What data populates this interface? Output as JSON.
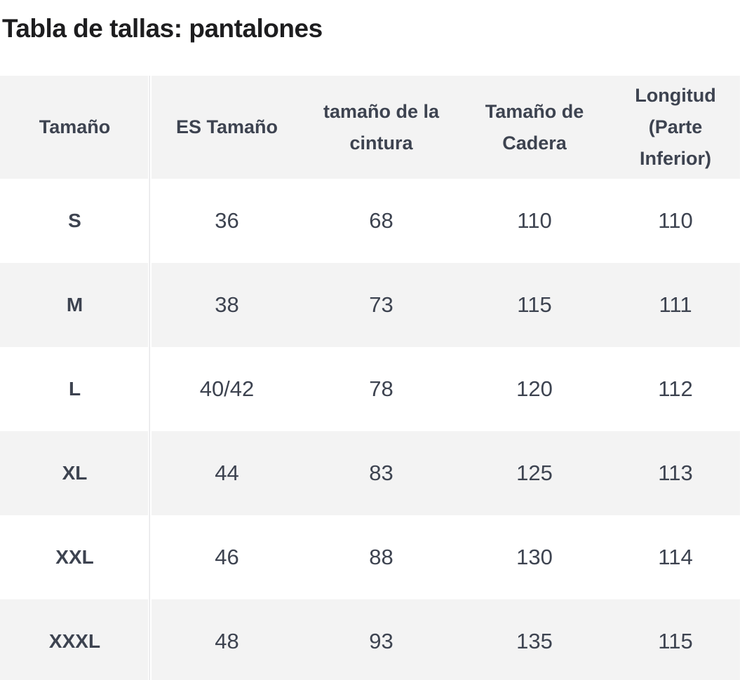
{
  "page": {
    "title": "Tabla de tallas: pantalones"
  },
  "size_chart": {
    "columns": [
      "Tamaño",
      "ES Tamaño",
      "tamaño de la cintura",
      "Tamaño de Cadera",
      "Longitud (Parte Inferior)"
    ],
    "rows": [
      [
        "S",
        "36",
        "68",
        "110",
        "110"
      ],
      [
        "M",
        "38",
        "73",
        "115",
        "111"
      ],
      [
        "L",
        "40/42",
        "78",
        "120",
        "112"
      ],
      [
        "XL",
        "44",
        "83",
        "125",
        "113"
      ],
      [
        "XXL",
        "46",
        "88",
        "130",
        "114"
      ],
      [
        "XXXL",
        "48",
        "93",
        "135",
        "115"
      ]
    ]
  },
  "colors": {
    "title_text": "#1d1d1f",
    "table_text": "#3d4350",
    "alt_row_bg": "#f3f3f3",
    "divider": "#e7e7e9",
    "page_bg": "#ffffff"
  }
}
